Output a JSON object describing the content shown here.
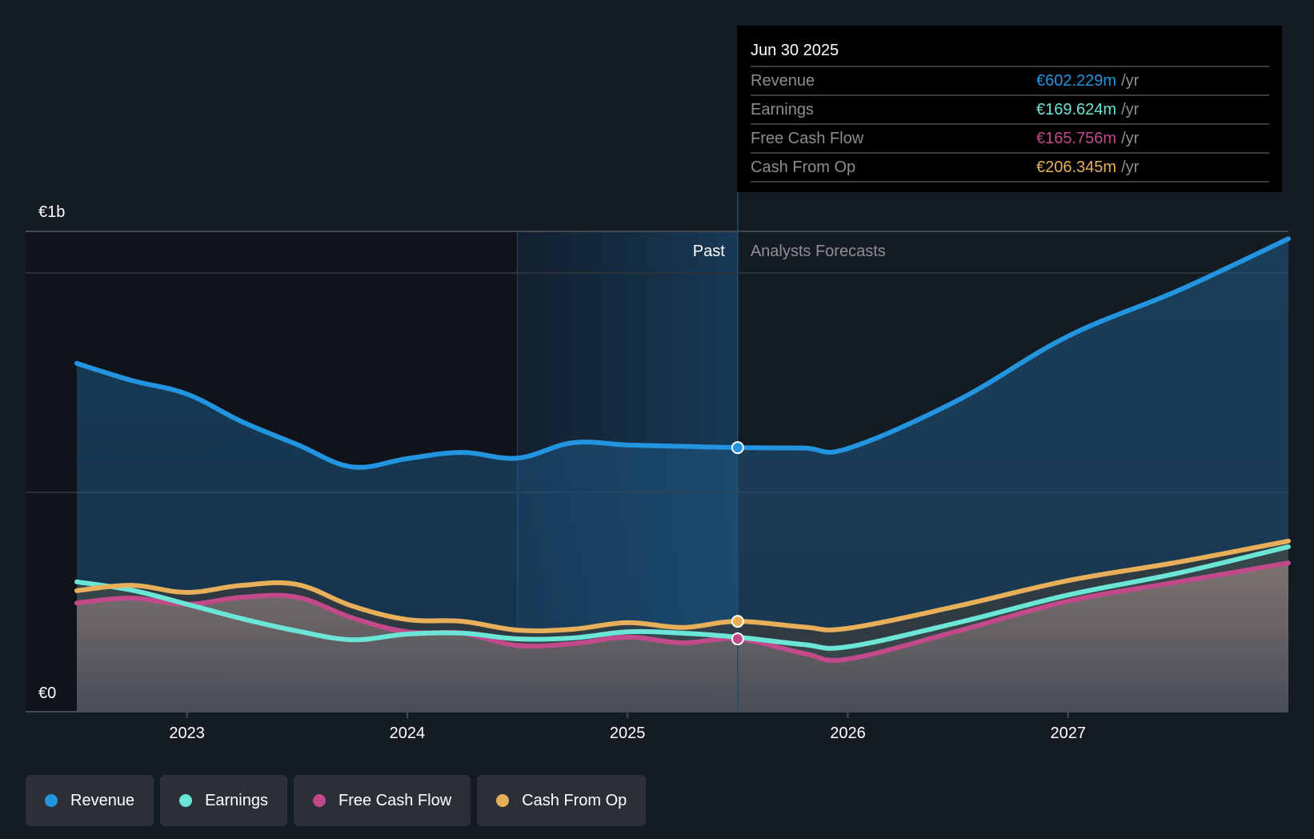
{
  "tooltip": {
    "date": "Jun 30 2025",
    "unit": "/yr",
    "rows": [
      {
        "label": "Revenue",
        "value": "€602.229m",
        "color": "#2394df"
      },
      {
        "label": "Earnings",
        "value": "€169.624m",
        "color": "#6ce5d6"
      },
      {
        "label": "Free Cash Flow",
        "value": "€165.756m",
        "color": "#c2498a"
      },
      {
        "label": "Cash From Op",
        "value": "€206.345m",
        "color": "#e8af5b"
      }
    ]
  },
  "sections": {
    "past": "Past",
    "forecast": "Analysts Forecasts"
  },
  "legend": [
    {
      "label": "Revenue",
      "color": "#2394df"
    },
    {
      "label": "Earnings",
      "color": "#6ce5d6"
    },
    {
      "label": "Free Cash Flow",
      "color": "#c2498a"
    },
    {
      "label": "Cash From Op",
      "color": "#e8af5b"
    }
  ],
  "chart_data": {
    "type": "area",
    "title": "",
    "xlabel": "",
    "ylabel": "",
    "y_unit": "€m",
    "ylim": [
      0,
      1100
    ],
    "y_ticks": [
      {
        "value": 0,
        "label": "€0"
      },
      {
        "value": 1000,
        "label": "€1b"
      }
    ],
    "gridlines_at": [
      0,
      500,
      1000
    ],
    "x_ticks": [
      {
        "value": 2023,
        "label": "2023"
      },
      {
        "value": 2024,
        "label": "2024"
      },
      {
        "value": 2025,
        "label": "2025"
      },
      {
        "value": 2026,
        "label": "2026"
      },
      {
        "value": 2027,
        "label": "2027"
      }
    ],
    "xlim": [
      2022.5,
      2028.0
    ],
    "highlight_range": [
      2024.5,
      2025.5
    ],
    "past_forecast_split": 2025.5,
    "selected_x": 2025.5,
    "legend_position": "bottom-left",
    "x": [
      2022.5,
      2022.75,
      2023.0,
      2023.25,
      2023.5,
      2023.75,
      2024.0,
      2024.25,
      2024.5,
      2024.75,
      2025.0,
      2025.25,
      2025.5,
      2025.8,
      2026.0,
      2026.5,
      2027.0,
      2027.5,
      2028.0
    ],
    "series": [
      {
        "name": "Revenue",
        "color": "#2394df",
        "values": [
          794,
          755,
          724,
          661,
          609,
          558,
          577,
          591,
          578,
          613,
          608,
          605,
          602,
          601,
          600,
          710,
          856,
          960,
          1078
        ]
      },
      {
        "name": "Earnings",
        "color": "#6ce5d6",
        "values": [
          296,
          277,
          245,
          212,
          184,
          164,
          177,
          179,
          166,
          168,
          182,
          179,
          170,
          153,
          148,
          203,
          266,
          316,
          376
        ]
      },
      {
        "name": "Free Cash Flow",
        "color": "#c2498a",
        "values": [
          248,
          259,
          245,
          261,
          261,
          214,
          182,
          179,
          151,
          155,
          170,
          157,
          166,
          133,
          120,
          184,
          252,
          296,
          339
        ]
      },
      {
        "name": "Cash From Op",
        "color": "#e8af5b",
        "values": [
          276,
          288,
          272,
          288,
          290,
          241,
          210,
          206,
          186,
          188,
          203,
          192,
          206,
          193,
          190,
          241,
          299,
          341,
          389
        ]
      }
    ]
  }
}
